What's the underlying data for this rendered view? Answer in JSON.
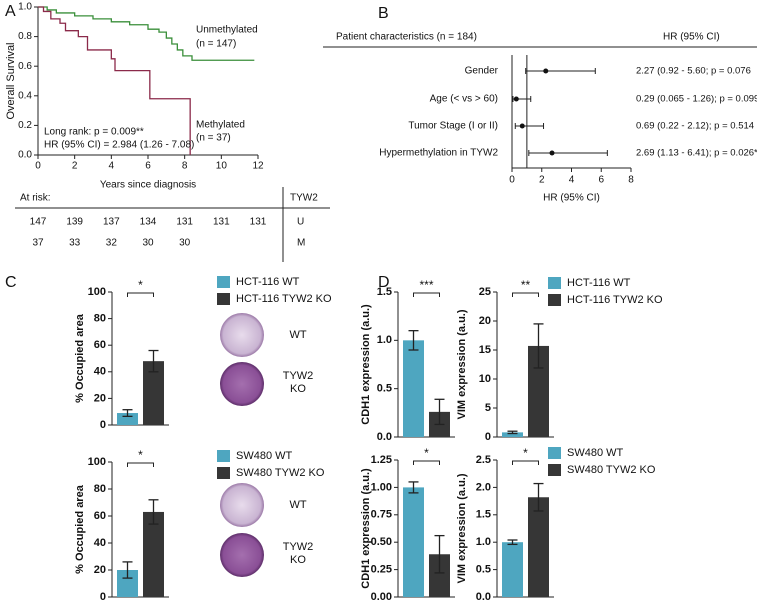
{
  "chart_data": [
    {
      "type": "survival",
      "panel": "A",
      "xlabel": "Years since diagnosis",
      "ylabel": "Overall Survival",
      "xlim": [
        0,
        12
      ],
      "xticks": [
        0,
        2,
        4,
        6,
        8,
        10,
        12
      ],
      "ylim": [
        0,
        1
      ],
      "yticks": [
        {
          "value": 0,
          "label": "0.0"
        },
        0.2,
        0.4,
        0.6,
        0.8,
        {
          "value": 1,
          "label": "1.0"
        }
      ],
      "series": [
        {
          "name": "Unmethylated",
          "color": "#3a8f3a",
          "x": [
            0,
            0.5,
            1.0,
            2.0,
            3.0,
            4.0,
            5.0,
            6.0,
            6.6,
            7.0,
            7.3,
            7.6,
            7.9,
            8.4,
            11.8
          ],
          "values": [
            1.0,
            0.98,
            0.96,
            0.94,
            0.92,
            0.9,
            0.88,
            0.85,
            0.83,
            0.79,
            0.75,
            0.71,
            0.67,
            0.64,
            0.64
          ]
        },
        {
          "name": "Methylated",
          "color": "#8b2a4a",
          "x": [
            0,
            0.3,
            0.7,
            1.2,
            1.5,
            2.2,
            2.7,
            4.0,
            4.2,
            6.1,
            8.3
          ],
          "values": [
            1.0,
            0.97,
            0.92,
            0.89,
            0.84,
            0.8,
            0.71,
            0.65,
            0.57,
            0.38,
            0.0
          ]
        }
      ],
      "annotations": [
        "Unmethylated",
        "(n = 147)",
        "Methylated",
        "(n = 37)",
        "Long rank: p = 0.009**",
        "HR (95% CI) = 2.984 (1.26 - 7.08)"
      ],
      "risk_table": {
        "title": "At risk:",
        "group_title": "TYW2",
        "rows": [
          {
            "group": "U",
            "values": [
              147,
              139,
              137,
              134,
              131,
              131,
              131
            ]
          },
          {
            "group": "M",
            "values": [
              37,
              33,
              32,
              30,
              30
            ]
          }
        ]
      }
    },
    {
      "type": "forest",
      "panel": "B",
      "header_left": "Patient characteristics (n = 184)",
      "header_right": "HR (95% CI)",
      "categories": [
        "Gender",
        "Age (< vs > 60)",
        "Tumor Stage (I or II)",
        "Hypermethylation in TYW2"
      ],
      "values": [
        2.27,
        0.29,
        0.69,
        2.69
      ],
      "lower": [
        0.92,
        0.065,
        0.22,
        1.13
      ],
      "upper": [
        5.6,
        1.26,
        2.12,
        6.41
      ],
      "value_labels": [
        "2.27 (0.92 - 5.60; p = 0.076",
        "0.29 (0.065 - 1.26); p = 0.099",
        "0.69 (0.22 - 2.12); p = 0.514",
        "2.69 (1.13 - 6.41); p = 0.026*"
      ],
      "reference": 1,
      "xlabel": "HR (95% CI)",
      "xlim": [
        0,
        8
      ],
      "xticks": [
        0,
        2,
        4,
        6,
        8
      ]
    },
    {
      "type": "bar",
      "panel": "C",
      "ylabel": "% Occupied area",
      "ylim": [
        0,
        100
      ],
      "yticks": [
        0,
        20,
        40,
        60,
        80,
        100
      ],
      "significance": "*",
      "series": [
        {
          "name": "HCT-116 WT",
          "color": "#4ea6c0",
          "values": [
            9
          ],
          "errors": [
            2.5
          ]
        },
        {
          "name": "HCT-116 TYW2 KO",
          "color": "#363636",
          "values": [
            48
          ],
          "errors": [
            8
          ]
        }
      ],
      "image_labels": [
        "WT",
        "TYW2 KO"
      ]
    },
    {
      "type": "bar",
      "ylabel": "% Occupied area",
      "ylim": [
        0,
        100
      ],
      "yticks": [
        0,
        20,
        40,
        60,
        80,
        100
      ],
      "significance": "*",
      "series": [
        {
          "name": "SW480 WT",
          "color": "#4ea6c0",
          "values": [
            20
          ],
          "errors": [
            6
          ]
        },
        {
          "name": "SW480 TYW2 KO",
          "color": "#363636",
          "values": [
            63
          ],
          "errors": [
            9
          ]
        }
      ],
      "image_labels": [
        "WT",
        "TYW2 KO"
      ]
    },
    {
      "type": "bar",
      "panel": "D",
      "ylabel": "CDH1 expression (a.u.)",
      "ylim": [
        0,
        1.5
      ],
      "yticks": [
        {
          "value": 0,
          "label": "0.0"
        },
        0.5,
        {
          "value": 1,
          "label": "1.0"
        },
        1.5
      ],
      "significance": "***",
      "series": [
        {
          "color": "#4ea6c0",
          "values": [
            1.0
          ],
          "errors": [
            0.1
          ]
        },
        {
          "color": "#363636",
          "values": [
            0.26
          ],
          "errors": [
            0.13
          ]
        }
      ]
    },
    {
      "type": "bar",
      "ylabel": "VIM expression (a.u.)",
      "ylim": [
        0,
        25
      ],
      "yticks": [
        0,
        5,
        10,
        15,
        20,
        25
      ],
      "significance": "**",
      "series": [
        {
          "name": "HCT-116 WT",
          "color": "#4ea6c0",
          "values": [
            0.8
          ],
          "errors": [
            0.2
          ]
        },
        {
          "name": "HCT-116 TYW2 KO",
          "color": "#363636",
          "values": [
            15.7
          ],
          "errors": [
            3.8
          ]
        }
      ]
    },
    {
      "type": "bar",
      "ylabel": "CDH1 expression (a.u.)",
      "ylim": [
        0,
        1.25
      ],
      "yticks": [
        {
          "value": 0,
          "label": "0.00"
        },
        0.25,
        {
          "value": 0.5,
          "label": "0.50"
        },
        0.75,
        {
          "value": 1,
          "label": "1.00"
        },
        1.25
      ],
      "significance": "*",
      "series": [
        {
          "color": "#4ea6c0",
          "values": [
            1.0
          ],
          "errors": [
            0.05
          ]
        },
        {
          "color": "#363636",
          "values": [
            0.39
          ],
          "errors": [
            0.17
          ]
        }
      ]
    },
    {
      "type": "bar",
      "ylabel": "VIM expression (a.u.)",
      "ylim": [
        0,
        2.5
      ],
      "yticks": [
        {
          "value": 0,
          "label": "0.0"
        },
        0.5,
        {
          "value": 1,
          "label": "1.0"
        },
        1.5,
        {
          "value": 2,
          "label": "2.0"
        },
        2.5
      ],
      "significance": "*",
      "series": [
        {
          "name": "SW480 WT",
          "color": "#4ea6c0",
          "values": [
            1.0
          ],
          "errors": [
            0.04
          ]
        },
        {
          "name": "SW480 TYW2 KO",
          "color": "#363636",
          "values": [
            1.82
          ],
          "errors": [
            0.25
          ]
        }
      ]
    }
  ]
}
